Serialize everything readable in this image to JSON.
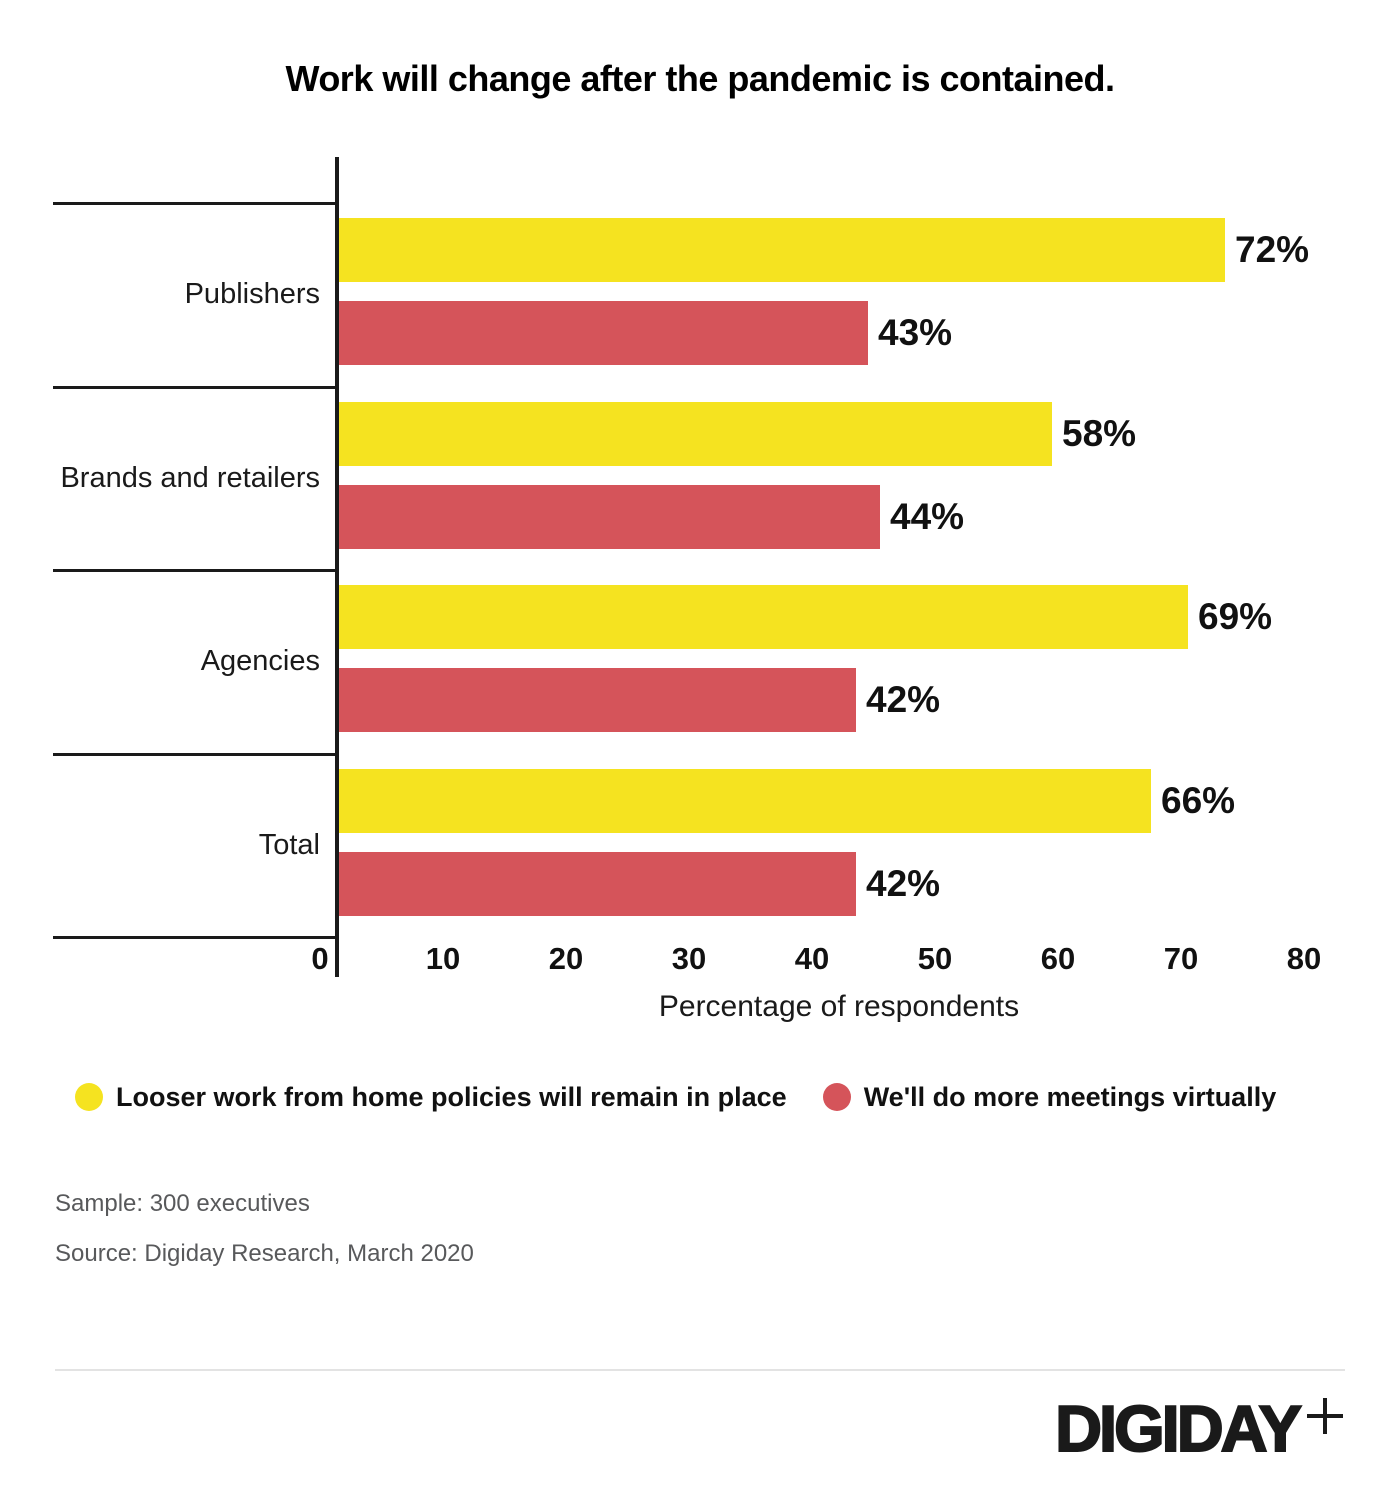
{
  "title": "Work will change after the pandemic is contained.",
  "chart_data": {
    "type": "bar",
    "orientation": "horizontal",
    "title": "Work will change after the pandemic is contained.",
    "categories": [
      "Publishers",
      "Brands and retailers",
      "Agencies",
      "Total"
    ],
    "series": [
      {
        "name": "Looser work from home policies will remain in place",
        "color": "#F5E320",
        "values": [
          72,
          58,
          69,
          66
        ]
      },
      {
        "name": "We'll do more meetings virtually",
        "color": "#D5545A",
        "values": [
          43,
          44,
          42,
          42
        ]
      }
    ],
    "value_suffix": "%",
    "xlabel": "Percentage of respondents",
    "ylabel": "",
    "xlim": [
      0,
      80
    ],
    "xticks": [
      0,
      10,
      20,
      30,
      40,
      50,
      60,
      70,
      80
    ],
    "grid": false,
    "legend_position": "bottom"
  },
  "footer": {
    "sample": "Sample: 300 executives",
    "source": "Source: Digiday Research, March 2020"
  },
  "logo": {
    "text": "DIGIDAY",
    "plus": "+"
  },
  "colors": {
    "bar_yellow": "#F5E320",
    "bar_red": "#D5545A",
    "axis": "#1a1a1a",
    "note_gray": "#58595b",
    "divider_gray": "#e3e3e3"
  }
}
